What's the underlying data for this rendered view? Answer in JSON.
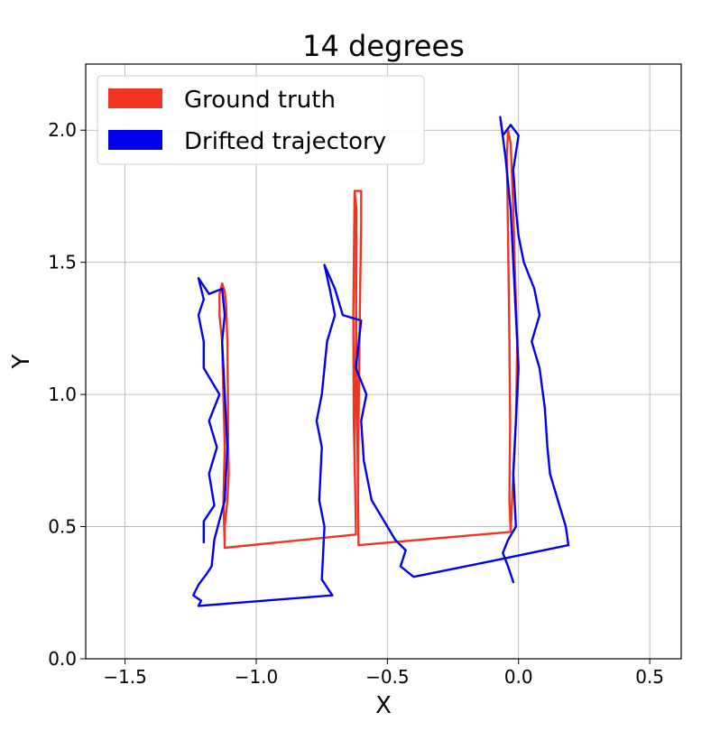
{
  "chart_data": {
    "type": "line",
    "title": "14 degrees",
    "xlabel": "X",
    "ylabel": "Y",
    "xlim": [
      -1.65,
      0.62
    ],
    "ylim": [
      0.0,
      2.25
    ],
    "xticks": [
      -1.5,
      -1.0,
      -0.5,
      0.0,
      0.5
    ],
    "xtick_labels": [
      "−1.5",
      "−1.0",
      "−0.5",
      "0.0",
      "0.5"
    ],
    "yticks": [
      0.0,
      0.5,
      1.0,
      1.5,
      2.0
    ],
    "ytick_labels": [
      "0.0",
      "0.5",
      "1.0",
      "1.5",
      "2.0"
    ],
    "grid": true,
    "legend_position": "top-left",
    "series": [
      {
        "name": "Ground truth",
        "color": "#ee3524",
        "points": [
          [
            -1.14,
            1.38
          ],
          [
            -1.13,
            1.42
          ],
          [
            -1.12,
            1.39
          ],
          [
            -1.115,
            1.34
          ],
          [
            -1.11,
            1.2
          ],
          [
            -1.108,
            1.0
          ],
          [
            -1.107,
            0.8
          ],
          [
            -1.105,
            0.7
          ],
          [
            -1.11,
            0.6
          ],
          [
            -1.12,
            0.5
          ],
          [
            -1.12,
            0.42
          ],
          [
            -0.62,
            0.47
          ],
          [
            -0.625,
            0.8
          ],
          [
            -0.62,
            1.2
          ],
          [
            -0.618,
            1.6
          ],
          [
            -0.625,
            1.77
          ],
          [
            -0.6,
            1.77
          ],
          [
            -0.6,
            1.65
          ],
          [
            -0.605,
            1.3
          ],
          [
            -0.61,
            0.9
          ],
          [
            -0.612,
            0.6
          ],
          [
            -0.61,
            0.43
          ],
          [
            -0.03,
            0.48
          ],
          [
            -0.02,
            0.7
          ],
          [
            -0.01,
            0.9
          ],
          [
            -0.005,
            1.2
          ],
          [
            -0.015,
            1.5
          ],
          [
            -0.02,
            1.7
          ],
          [
            -0.03,
            1.95
          ],
          [
            -0.04,
            2.0
          ],
          [
            -0.045,
            1.9
          ],
          [
            -0.04,
            1.6
          ],
          [
            -0.035,
            1.2
          ],
          [
            -0.032,
            0.9
          ],
          [
            -0.035,
            0.6
          ],
          [
            -0.03,
            0.48
          ],
          [
            -0.61,
            0.43
          ],
          [
            -0.615,
            0.9
          ],
          [
            -0.62,
            1.4
          ],
          [
            -0.618,
            1.7
          ],
          [
            -0.625,
            1.77
          ],
          [
            -0.63,
            1.3
          ],
          [
            -0.628,
            0.9
          ],
          [
            -0.622,
            0.6
          ],
          [
            -0.62,
            0.47
          ],
          [
            -1.12,
            0.42
          ],
          [
            -1.125,
            0.6
          ],
          [
            -1.12,
            0.8
          ],
          [
            -1.125,
            1.0
          ],
          [
            -1.13,
            1.2
          ],
          [
            -1.14,
            1.3
          ],
          [
            -1.14,
            1.38
          ]
        ]
      },
      {
        "name": "Drifted trajectory",
        "color": "#0000ee",
        "points": [
          [
            -1.2,
            0.44
          ],
          [
            -1.2,
            0.52
          ],
          [
            -1.16,
            0.58
          ],
          [
            -1.18,
            0.7
          ],
          [
            -1.15,
            0.8
          ],
          [
            -1.18,
            0.9
          ],
          [
            -1.14,
            1.0
          ],
          [
            -1.2,
            1.1
          ],
          [
            -1.2,
            1.2
          ],
          [
            -1.22,
            1.3
          ],
          [
            -1.2,
            1.36
          ],
          [
            -1.22,
            1.44
          ],
          [
            -1.18,
            1.38
          ],
          [
            -1.13,
            1.4
          ],
          [
            -1.12,
            1.3
          ],
          [
            -1.13,
            1.2
          ],
          [
            -1.12,
            1.0
          ],
          [
            -1.11,
            0.8
          ],
          [
            -1.12,
            0.6
          ],
          [
            -1.16,
            0.45
          ],
          [
            -1.17,
            0.35
          ],
          [
            -1.19,
            0.32
          ],
          [
            -1.22,
            0.28
          ],
          [
            -1.24,
            0.24
          ],
          [
            -1.21,
            0.22
          ],
          [
            -1.22,
            0.2
          ],
          [
            -0.71,
            0.24
          ],
          [
            -0.75,
            0.3
          ],
          [
            -0.74,
            0.5
          ],
          [
            -0.76,
            0.6
          ],
          [
            -0.75,
            0.8
          ],
          [
            -0.77,
            0.9
          ],
          [
            -0.75,
            1.0
          ],
          [
            -0.74,
            1.1
          ],
          [
            -0.73,
            1.2
          ],
          [
            -0.7,
            1.3
          ],
          [
            -0.72,
            1.4
          ],
          [
            -0.74,
            1.49
          ],
          [
            -0.7,
            1.4
          ],
          [
            -0.67,
            1.3
          ],
          [
            -0.6,
            1.28
          ],
          [
            -0.62,
            1.1
          ],
          [
            -0.58,
            1.0
          ],
          [
            -0.6,
            0.9
          ],
          [
            -0.59,
            0.75
          ],
          [
            -0.56,
            0.6
          ],
          [
            -0.5,
            0.5
          ],
          [
            -0.47,
            0.45
          ],
          [
            -0.43,
            0.41
          ],
          [
            -0.45,
            0.35
          ],
          [
            -0.4,
            0.31
          ],
          [
            -0.1,
            0.37
          ],
          [
            0.19,
            0.43
          ],
          [
            0.18,
            0.5
          ],
          [
            0.15,
            0.6
          ],
          [
            0.12,
            0.7
          ],
          [
            0.11,
            0.8
          ],
          [
            0.1,
            0.95
          ],
          [
            0.08,
            1.1
          ],
          [
            0.05,
            1.2
          ],
          [
            0.08,
            1.3
          ],
          [
            0.06,
            1.4
          ],
          [
            0.02,
            1.5
          ],
          [
            0.0,
            1.6
          ],
          [
            -0.01,
            1.7
          ],
          [
            -0.02,
            1.85
          ],
          [
            0.0,
            1.98
          ],
          [
            -0.03,
            2.02
          ],
          [
            -0.06,
            1.98
          ],
          [
            -0.07,
            2.05
          ],
          [
            -0.05,
            1.9
          ],
          [
            -0.03,
            1.7
          ],
          [
            -0.02,
            1.5
          ],
          [
            -0.01,
            1.3
          ],
          [
            0.0,
            1.1
          ],
          [
            -0.01,
            0.9
          ],
          [
            -0.02,
            0.7
          ],
          [
            -0.01,
            0.5
          ],
          [
            -0.04,
            0.45
          ],
          [
            -0.06,
            0.4
          ],
          [
            -0.04,
            0.35
          ],
          [
            -0.02,
            0.29
          ]
        ]
      }
    ]
  }
}
